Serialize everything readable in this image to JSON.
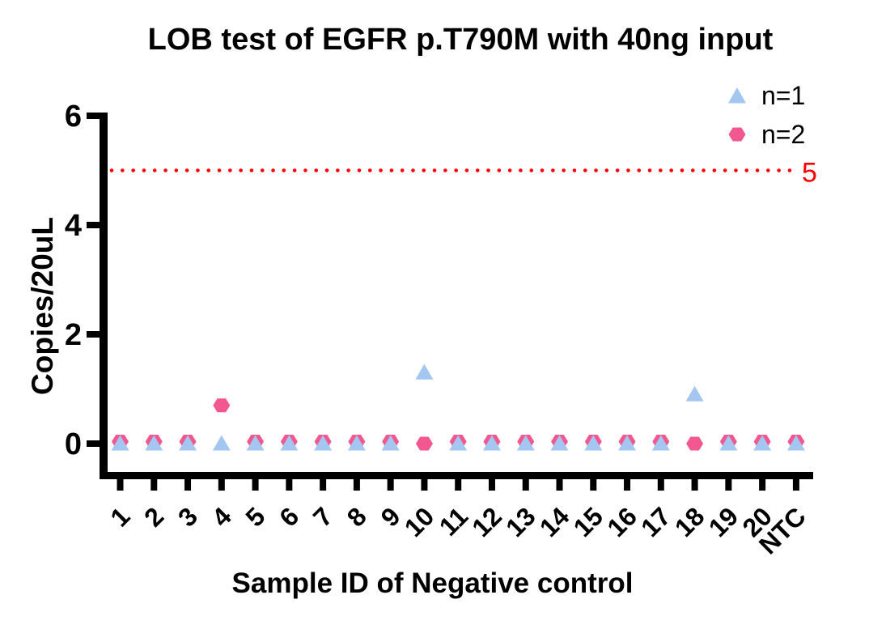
{
  "chart_data": {
    "type": "scatter",
    "title": "LOB test of EGFR p.T790M with 40ng input",
    "xlabel": "Sample ID of Negative control",
    "ylabel": "Copies/20uL",
    "categories": [
      "1",
      "2",
      "3",
      "4",
      "5",
      "6",
      "7",
      "8",
      "9",
      "10",
      "11",
      "12",
      "13",
      "14",
      "15",
      "16",
      "17",
      "18",
      "19",
      "20",
      "NTC"
    ],
    "series": [
      {
        "name": "n=1",
        "marker": "triangle",
        "color": "#A3C7F0",
        "values": [
          0,
          0,
          0,
          0,
          0,
          0,
          0,
          0,
          0,
          1.3,
          0,
          0,
          0,
          0,
          0,
          0,
          0,
          0.9,
          0,
          0,
          0
        ]
      },
      {
        "name": "n=2",
        "marker": "hexagon",
        "color": "#F2578F",
        "values": [
          0,
          0,
          0,
          0.7,
          0,
          0,
          0,
          0,
          0,
          0,
          0,
          0,
          0,
          0,
          0,
          0,
          0,
          0,
          0,
          0,
          0
        ]
      }
    ],
    "ylim": [
      0,
      6
    ],
    "yticks": [
      0,
      2,
      4,
      6
    ],
    "threshold": {
      "value": 5,
      "label": "5",
      "color": "#FF0000",
      "style": "dotted"
    },
    "legend": {
      "position": "top-right"
    },
    "grid": false,
    "colors": {
      "axis": "#000000",
      "background": "#FFFFFF"
    }
  }
}
